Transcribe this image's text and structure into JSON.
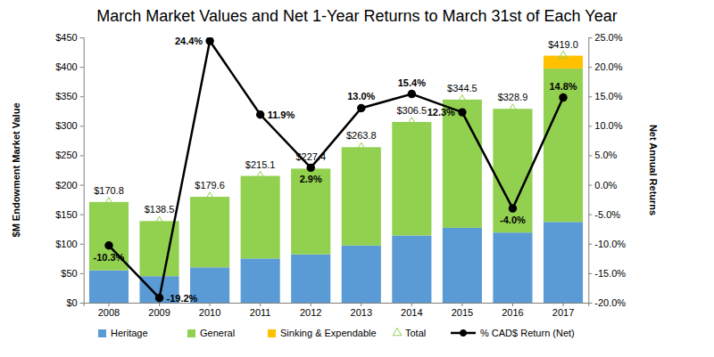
{
  "chart_data": {
    "type": "bar",
    "title": "March Market Values and Net 1-Year Returns to March 31st of Each Year",
    "y_label": "$M Endowment Market Value",
    "y2_label": "Net Annual Returns",
    "categories": [
      "2008",
      "2009",
      "2010",
      "2011",
      "2012",
      "2013",
      "2014",
      "2015",
      "2016",
      "2017"
    ],
    "stacked": true,
    "grid": false,
    "legend": "bottom",
    "ylim": [
      0,
      450
    ],
    "yticks": [
      {
        "value": 0,
        "label": "$0"
      },
      {
        "value": 50,
        "label": "$50"
      },
      {
        "value": 100,
        "label": "$100"
      },
      {
        "value": 150,
        "label": "$150"
      },
      {
        "value": 200,
        "label": "$200"
      },
      {
        "value": 250,
        "label": "$250"
      },
      {
        "value": 300,
        "label": "$300"
      },
      {
        "value": 350,
        "label": "$350"
      },
      {
        "value": 400,
        "label": "$400"
      },
      {
        "value": 450,
        "label": "$450"
      }
    ],
    "y2lim": [
      -20,
      25
    ],
    "y2ticks": [
      {
        "value": -20,
        "label": "-20.0%"
      },
      {
        "value": -15,
        "label": "-15.0%"
      },
      {
        "value": -10,
        "label": "-10.0%"
      },
      {
        "value": -5,
        "label": "-5.0%"
      },
      {
        "value": 0,
        "label": "0.0%"
      },
      {
        "value": 5,
        "label": "5.0%"
      },
      {
        "value": 10,
        "label": "10.0%"
      },
      {
        "value": 15,
        "label": "15.0%"
      },
      {
        "value": 20,
        "label": "20.0%"
      },
      {
        "value": 25,
        "label": "25.0%"
      }
    ],
    "series": [
      {
        "name": "Heritage",
        "type": "bar",
        "color": "#5b9bd5",
        "values": [
          55,
          45,
          60,
          75,
          82,
          97,
          114,
          127,
          119,
          137
        ]
      },
      {
        "name": "General",
        "type": "bar",
        "color": "#92d050",
        "values": [
          115.8,
          93.5,
          119.6,
          140.1,
          145.4,
          166.8,
          192.5,
          217.5,
          209.9,
          260
        ]
      },
      {
        "name": "Sinking & Expendable",
        "type": "bar",
        "color": "#ffc000",
        "values": [
          0,
          0,
          0,
          0,
          0,
          0,
          0,
          0,
          0,
          22
        ]
      },
      {
        "name": "Total",
        "type": "scatter",
        "color": "#92d050",
        "marker": "triangle-open",
        "data_labels": true,
        "values": [
          170.8,
          138.5,
          179.6,
          215.1,
          227.4,
          263.8,
          306.5,
          344.5,
          328.9,
          419.0
        ],
        "value_labels": [
          "$170.8",
          "$138.5",
          "$179.6",
          "$215.1",
          "$227.4",
          "$263.8",
          "$306.5",
          "$344.5",
          "$328.9",
          "$419.0"
        ]
      },
      {
        "name": "% CAD$ Return (Net)",
        "type": "line",
        "axis": "y2",
        "color": "#000000",
        "marker": "circle",
        "line_style": "solid",
        "data_labels": true,
        "values": [
          -10.3,
          -19.2,
          24.4,
          11.9,
          2.9,
          13.0,
          15.4,
          12.3,
          -4.0,
          14.8
        ],
        "value_labels": [
          "-10.3%",
          "-19.2%",
          "24.4%",
          "11.9%",
          "2.9%",
          "13.0%",
          "15.4%",
          "12.3%",
          "-4.0%",
          "14.8%"
        ]
      }
    ]
  }
}
